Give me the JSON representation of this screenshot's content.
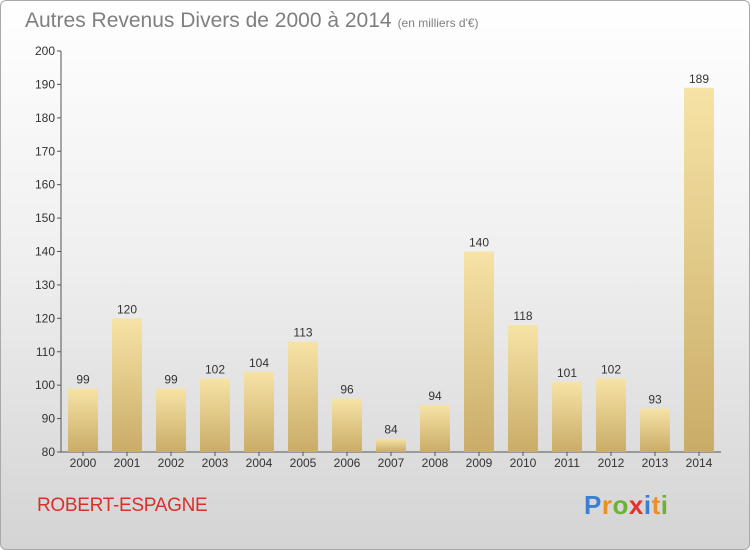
{
  "chart_title": "Autres Revenus Divers de 2000 à 2014",
  "chart_unit": "(en milliers d'€)",
  "commune": "ROBERT-ESPAGNE",
  "brand": {
    "letters": [
      "P",
      "r",
      "o",
      "x",
      "i",
      "t",
      "i"
    ],
    "colors": [
      "#3b7fd0",
      "#e8902a",
      "#6bb235",
      "#e3312f",
      "#3b7fd0",
      "#e8902a",
      "#6bb235"
    ]
  },
  "colors": {
    "bar_light": "#f7e3a6",
    "bar_dark": "#c9ac67",
    "axis": "#555555",
    "grid_tick": "#555555",
    "title": "#7f7f7f",
    "commune": "#d8302c"
  },
  "chart_data": {
    "type": "bar",
    "categories": [
      "2000",
      "2001",
      "2002",
      "2003",
      "2004",
      "2005",
      "2006",
      "2007",
      "2008",
      "2009",
      "2010",
      "2011",
      "2012",
      "2013",
      "2014"
    ],
    "values": [
      99,
      120,
      99,
      102,
      104,
      113,
      96,
      84,
      94,
      140,
      118,
      101,
      102,
      93,
      189
    ],
    "ylim": [
      80,
      200
    ],
    "yticks": [
      80,
      90,
      100,
      110,
      120,
      130,
      140,
      150,
      160,
      170,
      180,
      190,
      200
    ],
    "grid": false,
    "legend": "none",
    "data_labels": true
  }
}
